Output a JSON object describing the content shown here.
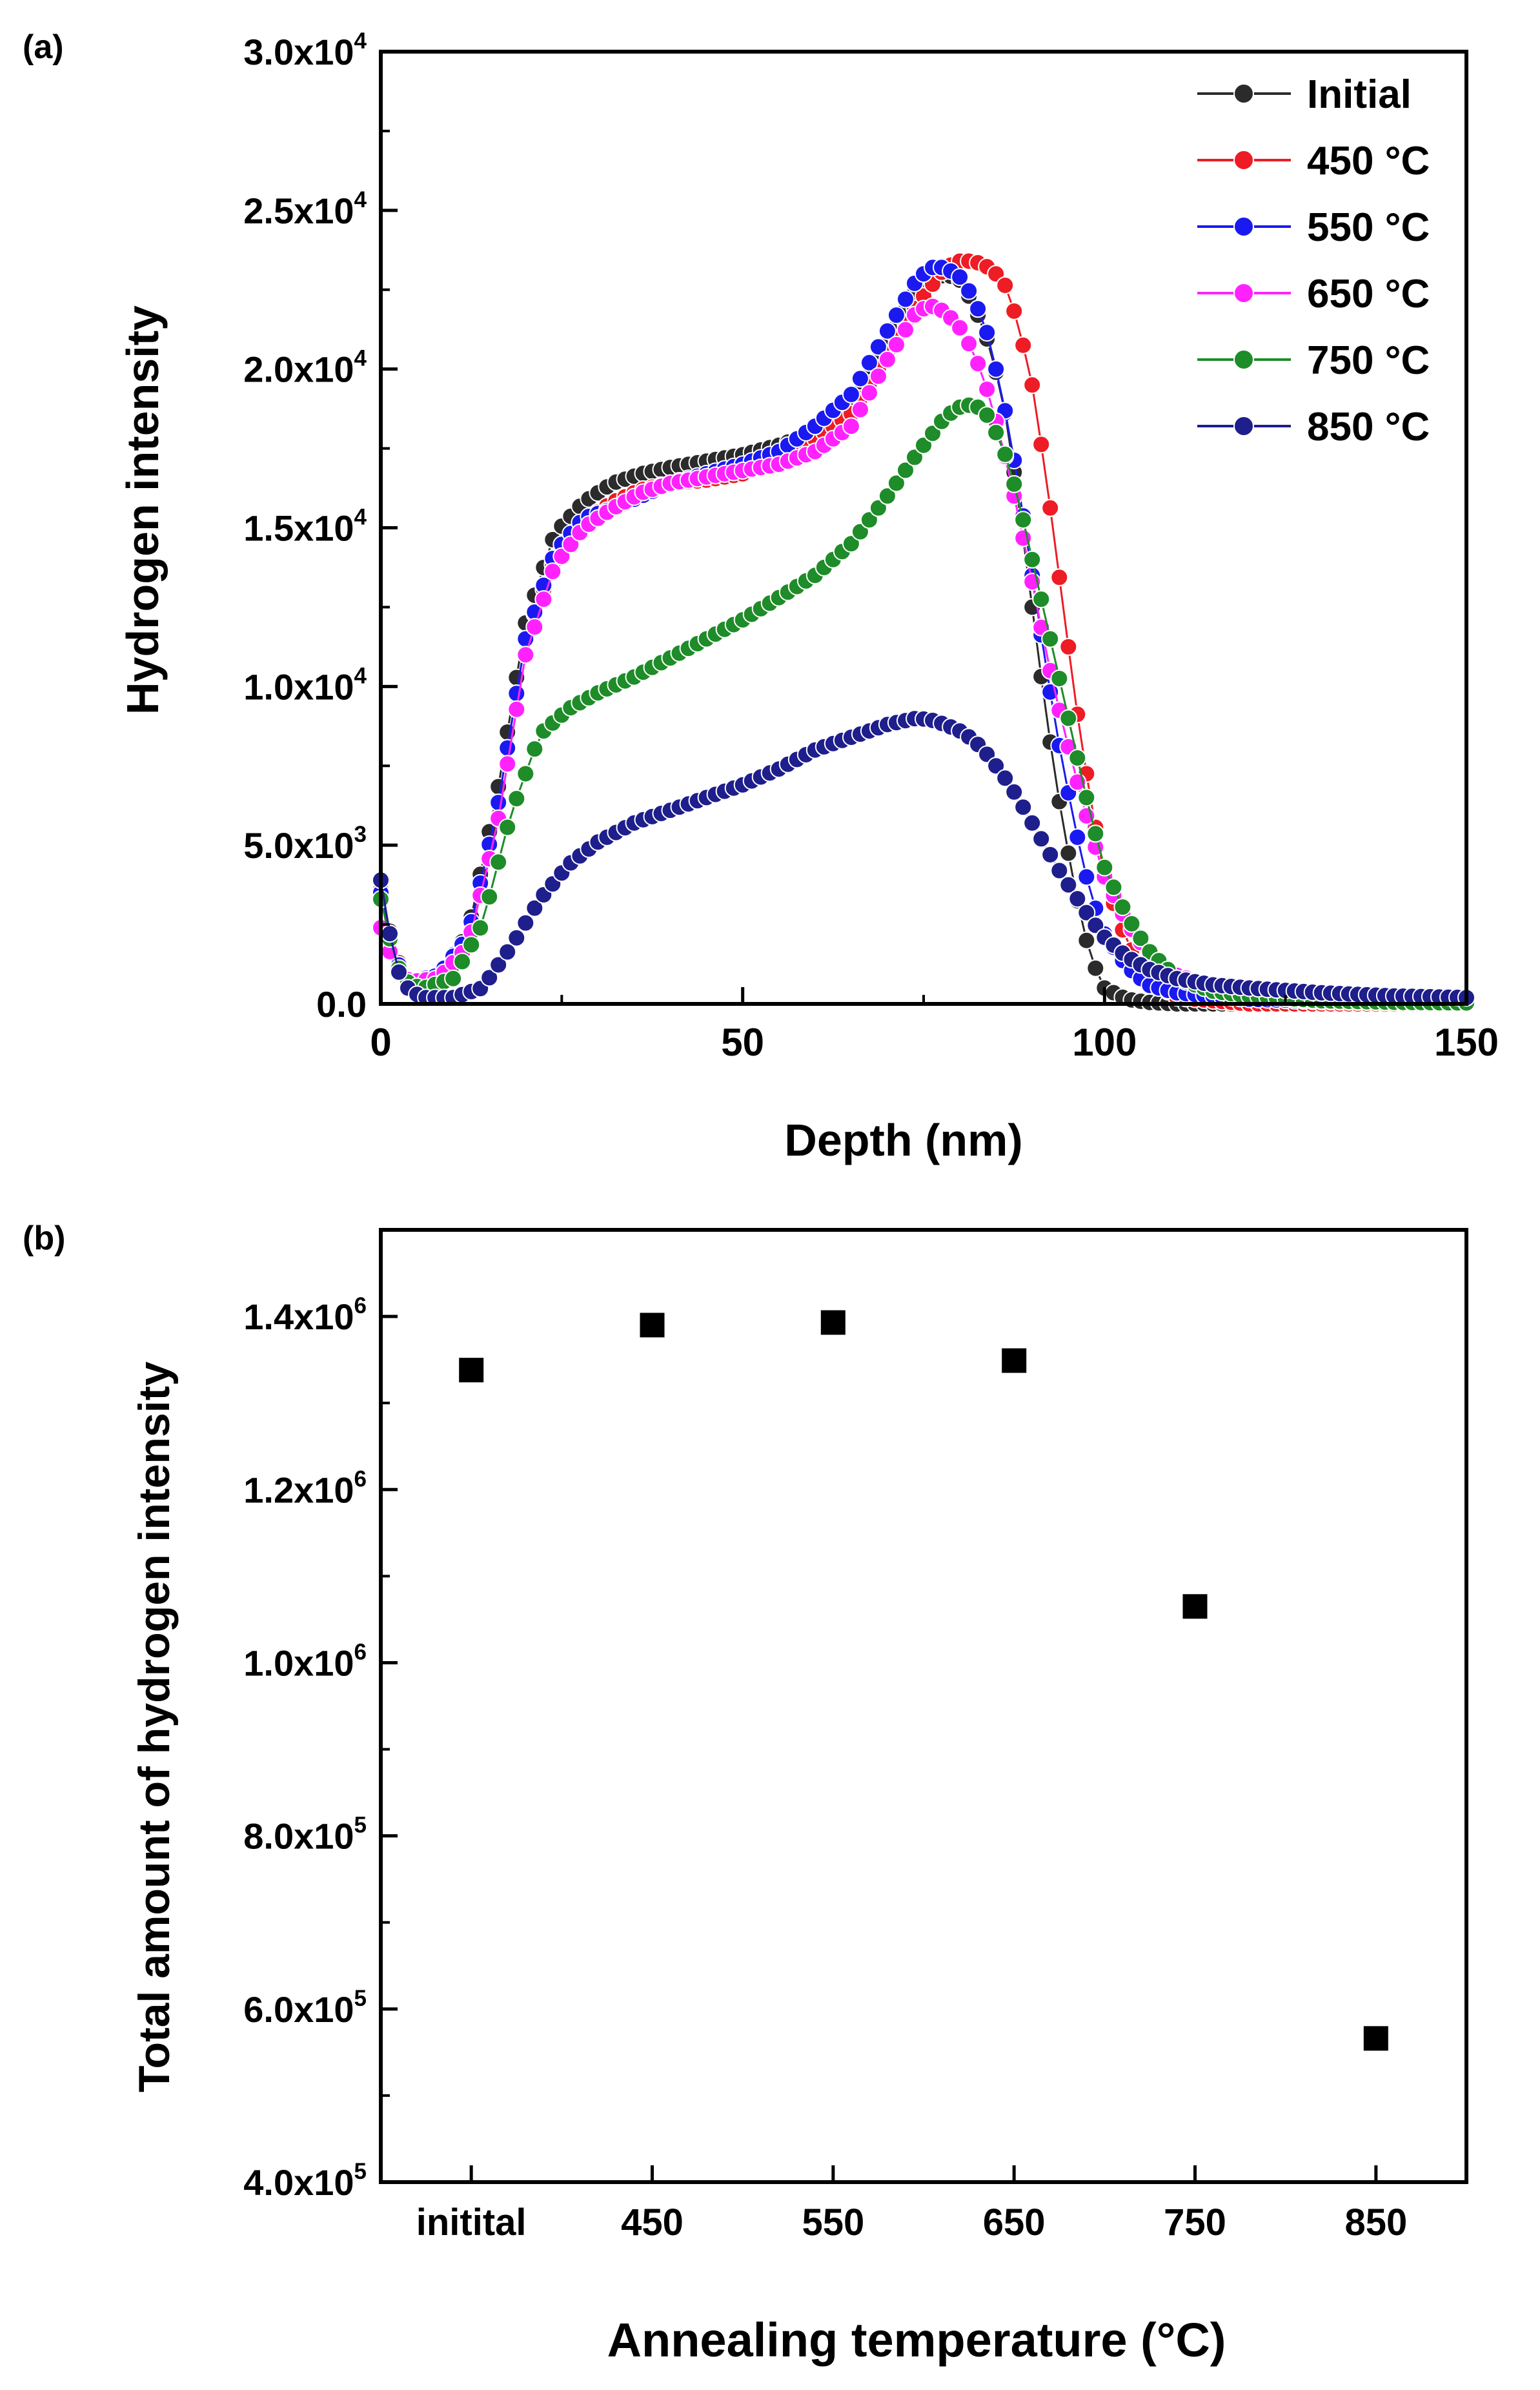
{
  "chart_data": [
    {
      "type": "scatter",
      "panel_label": "(a)",
      "xlabel": "Depth (nm)",
      "ylabel": "Hydrogen intensity",
      "xlim": [
        0,
        150
      ],
      "ylim": [
        0,
        30000
      ],
      "x_ticks": [
        0,
        50,
        100,
        150
      ],
      "x_tick_labels": [
        "0",
        "50",
        "100",
        "150"
      ],
      "y_ticks": [
        0,
        5000,
        10000,
        15000,
        20000,
        25000,
        30000
      ],
      "y_tick_labels": [
        {
          "mant": "0.0",
          "exp": ""
        },
        {
          "mant": "5.0x10",
          "exp": "3"
        },
        {
          "mant": "1.0x10",
          "exp": "4"
        },
        {
          "mant": "1.5x10",
          "exp": "4"
        },
        {
          "mant": "2.0x10",
          "exp": "4"
        },
        {
          "mant": "2.5x10",
          "exp": "4"
        },
        {
          "mant": "3.0x10",
          "exp": "4"
        }
      ],
      "legend_position": "top-right",
      "series": [
        {
          "name": "Initial",
          "color": "#2b2b2b",
          "x": [
            0,
            2,
            4,
            8,
            12,
            16,
            20,
            24,
            28,
            32,
            36,
            40,
            45,
            50,
            55,
            60,
            65,
            70,
            74,
            78,
            80,
            82,
            84,
            86,
            88,
            90,
            92,
            94,
            96,
            98,
            100,
            103,
            106,
            110,
            120,
            130,
            140,
            150
          ],
          "y": [
            3600,
            1500,
            700,
            900,
            2200,
            6500,
            12000,
            14800,
            15800,
            16400,
            16700,
            16900,
            17100,
            17300,
            17600,
            18000,
            18800,
            20800,
            22500,
            23000,
            22800,
            22000,
            20800,
            19000,
            16000,
            12500,
            9000,
            6000,
            3500,
            1500,
            500,
            150,
            50,
            0,
            0,
            0,
            0,
            0
          ]
        },
        {
          "name": "450 °C",
          "color": "#ee1c24",
          "x": [
            0,
            2,
            4,
            8,
            12,
            16,
            20,
            24,
            28,
            32,
            36,
            40,
            45,
            50,
            55,
            60,
            65,
            70,
            74,
            78,
            80,
            82,
            84,
            86,
            88,
            90,
            92,
            94,
            96,
            98,
            100,
            103,
            106,
            110,
            120,
            130,
            140,
            150
          ],
          "y": [
            3400,
            1500,
            700,
            900,
            2000,
            6000,
            11500,
            14000,
            15200,
            15800,
            16200,
            16400,
            16500,
            16700,
            17200,
            17800,
            18600,
            20500,
            22000,
            23200,
            23400,
            23400,
            23200,
            22800,
            21500,
            19500,
            16500,
            13000,
            9500,
            6500,
            4000,
            2000,
            800,
            200,
            0,
            0,
            0,
            0
          ]
        },
        {
          "name": "550 °C",
          "color": "#1a1af0",
          "x": [
            0,
            2,
            4,
            8,
            12,
            16,
            20,
            24,
            28,
            32,
            36,
            40,
            45,
            50,
            55,
            60,
            65,
            70,
            74,
            76,
            78,
            80,
            82,
            84,
            86,
            88,
            90,
            92,
            94,
            96,
            98,
            100,
            103,
            106,
            110,
            120,
            130,
            140,
            150
          ],
          "y": [
            3500,
            1400,
            700,
            900,
            2100,
            6000,
            11500,
            14200,
            15300,
            15600,
            16000,
            16400,
            16700,
            17000,
            17400,
            18200,
            19200,
            21200,
            22800,
            23200,
            23200,
            22900,
            22200,
            21000,
            19000,
            16500,
            13500,
            10500,
            7800,
            5500,
            3500,
            2200,
            1200,
            600,
            350,
            150,
            80,
            50,
            30
          ]
        },
        {
          "name": "650 °C",
          "color": "#ff22ff",
          "x": [
            0,
            2,
            4,
            8,
            12,
            16,
            20,
            24,
            28,
            32,
            36,
            40,
            45,
            50,
            55,
            60,
            65,
            70,
            74,
            76,
            78,
            80,
            82,
            84,
            86,
            88,
            90,
            92,
            94,
            96,
            98,
            100,
            103,
            106,
            110,
            115,
            120,
            130,
            140,
            150
          ],
          "y": [
            2400,
            1200,
            700,
            800,
            1800,
            5500,
            11000,
            13800,
            15000,
            15600,
            16100,
            16400,
            16600,
            16800,
            17000,
            17400,
            18200,
            20300,
            21800,
            22000,
            21800,
            21300,
            20500,
            19200,
            17500,
            15500,
            13300,
            11000,
            9000,
            7200,
            5500,
            4000,
            2600,
            1600,
            900,
            550,
            400,
            250,
            150,
            100
          ]
        },
        {
          "name": "750 °C",
          "color": "#1e8c28",
          "x": [
            0,
            2,
            4,
            6,
            10,
            14,
            18,
            22,
            26,
            30,
            35,
            40,
            45,
            50,
            55,
            60,
            65,
            70,
            74,
            78,
            80,
            82,
            84,
            86,
            88,
            90,
            92,
            94,
            96,
            98,
            100,
            103,
            106,
            110,
            115,
            120,
            130,
            140,
            150
          ],
          "y": [
            3300,
            1300,
            600,
            500,
            800,
            2500,
            6000,
            8500,
            9300,
            9800,
            10300,
            10900,
            11500,
            12100,
            12800,
            13500,
            14500,
            16000,
            17300,
            18500,
            18800,
            18900,
            18500,
            17500,
            16000,
            14000,
            12000,
            10000,
            8000,
            6000,
            4300,
            2800,
            1700,
            800,
            400,
            250,
            100,
            50,
            30
          ]
        },
        {
          "name": "850 °C",
          "color": "#1e1e8c",
          "x": [
            0,
            2,
            4,
            6,
            10,
            14,
            18,
            22,
            26,
            30,
            35,
            40,
            45,
            50,
            55,
            60,
            65,
            70,
            74,
            76,
            78,
            80,
            82,
            84,
            86,
            88,
            90,
            92,
            94,
            96,
            98,
            100,
            103,
            106,
            110,
            115,
            120,
            130,
            140,
            150
          ],
          "y": [
            3900,
            1200,
            400,
            200,
            200,
            500,
            1800,
            3300,
            4400,
            5100,
            5700,
            6100,
            6500,
            6900,
            7400,
            8000,
            8400,
            8800,
            9000,
            8950,
            8800,
            8600,
            8300,
            7800,
            7200,
            6500,
            5700,
            4900,
            4100,
            3400,
            2700,
            2100,
            1500,
            1100,
            800,
            600,
            500,
            350,
            250,
            200
          ]
        }
      ]
    },
    {
      "type": "scatter",
      "panel_label": "(b)",
      "xlabel": "Annealing temperature (°C)",
      "ylabel": "Total amount of hydrogen intensity",
      "categories": [
        "initital",
        "450",
        "550",
        "650",
        "750",
        "850"
      ],
      "values": [
        1338000,
        1390000,
        1393000,
        1349000,
        1065000,
        566000
      ],
      "ylim": [
        400000,
        1500000
      ],
      "y_ticks": [
        400000,
        600000,
        800000,
        1000000,
        1200000,
        1400000
      ],
      "y_tick_labels": [
        {
          "mant": "4.0x10",
          "exp": "5"
        },
        {
          "mant": "6.0x10",
          "exp": "5"
        },
        {
          "mant": "8.0x10",
          "exp": "5"
        },
        {
          "mant": "1.0x10",
          "exp": "6"
        },
        {
          "mant": "1.2x10",
          "exp": "6"
        },
        {
          "mant": "1.4x10",
          "exp": "6"
        }
      ],
      "marker_color": "#000000"
    }
  ]
}
